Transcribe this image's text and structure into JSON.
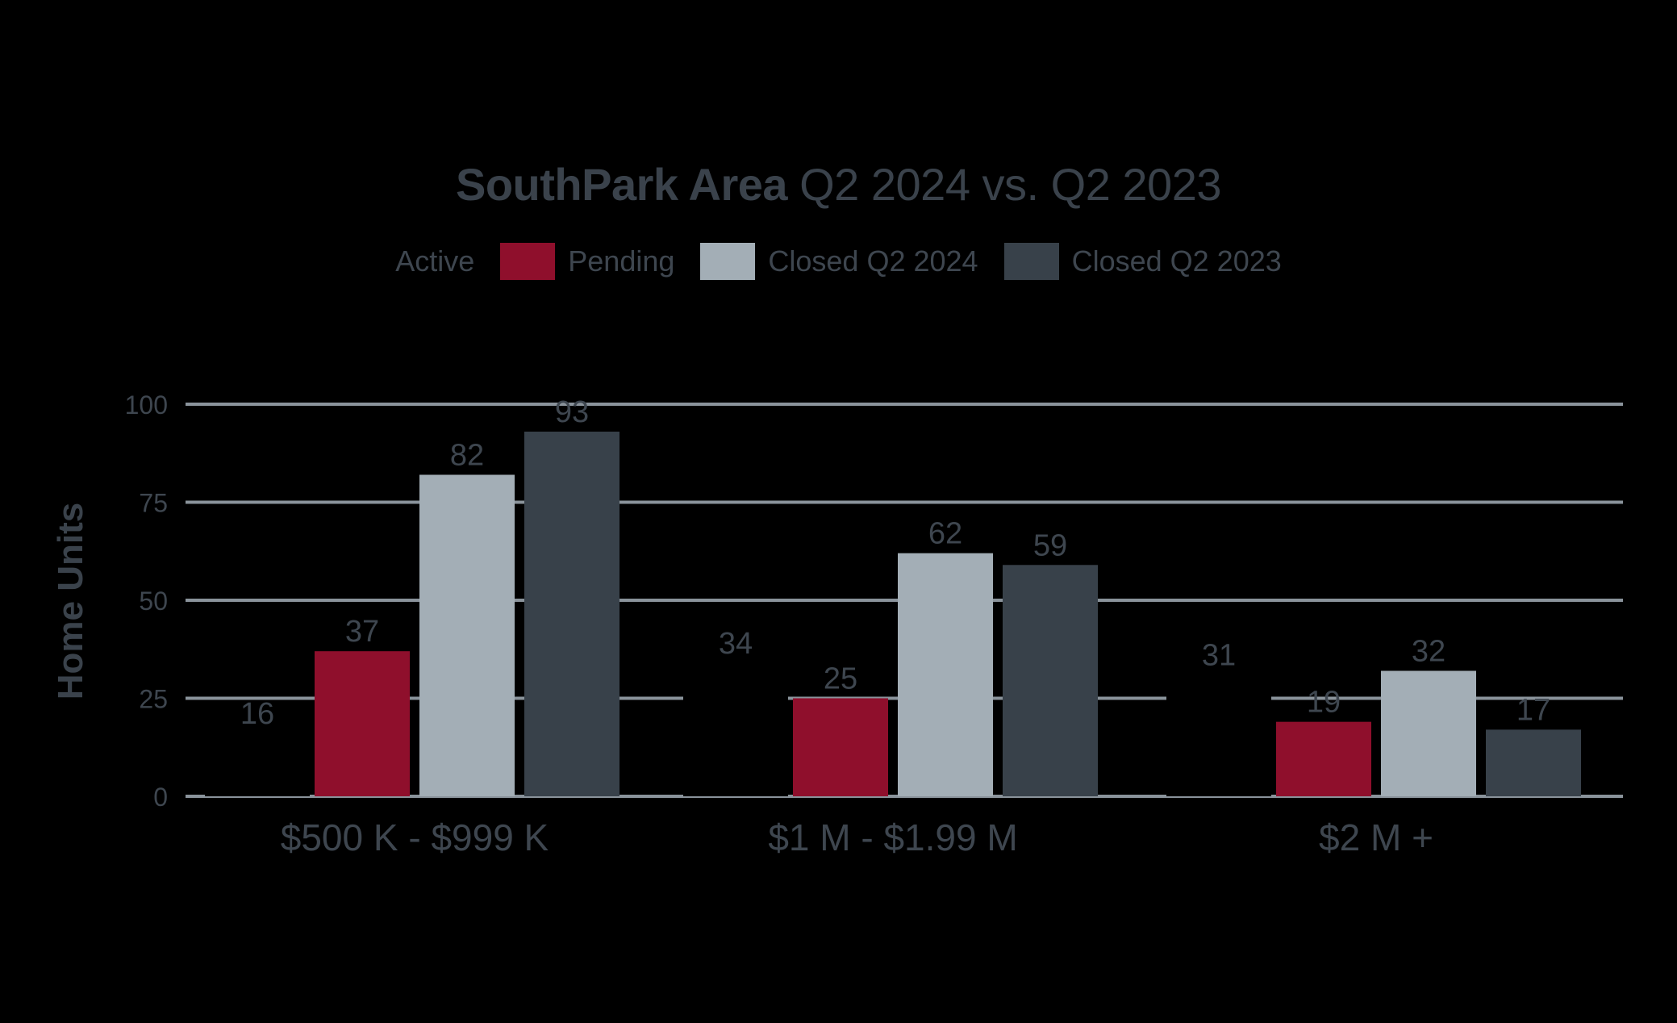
{
  "title_bold": "SouthPark Area",
  "title_light": "Q2 2024 vs. Q2 2023",
  "chart_data": {
    "type": "bar",
    "title": "SouthPark Area Q2 2024 vs. Q2 2023",
    "ylabel": "Home Units",
    "xlabel": "",
    "ylim": [
      0,
      100
    ],
    "yticks": [
      0,
      25,
      50,
      75,
      100
    ],
    "grid": true,
    "legend_position": "top-center",
    "categories": [
      "$500 K - $999 K",
      "$1 M - $1.99 M",
      "$2 M +"
    ],
    "series": [
      {
        "name": "Active",
        "color": "#000000",
        "values": [
          16,
          34,
          31
        ]
      },
      {
        "name": "Pending",
        "color": "#8f0f2c",
        "values": [
          37,
          25,
          19
        ]
      },
      {
        "name": "Closed Q2 2024",
        "color": "#a3aeb6",
        "values": [
          82,
          62,
          32
        ]
      },
      {
        "name": "Closed Q2 2023",
        "color": "#38414a",
        "values": [
          93,
          59,
          17
        ]
      }
    ]
  }
}
